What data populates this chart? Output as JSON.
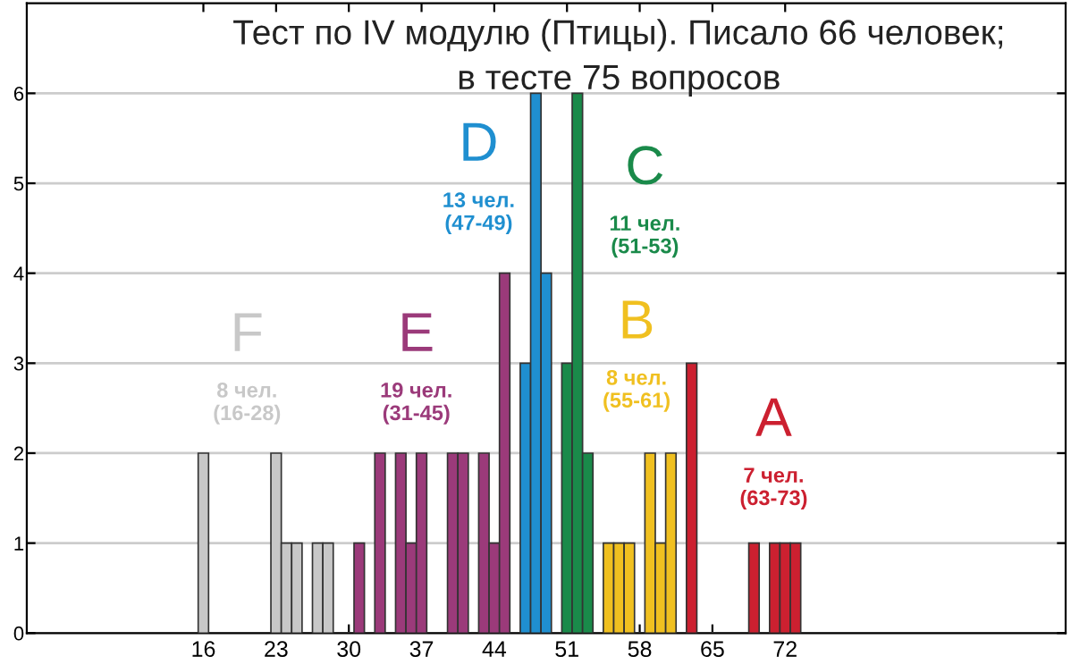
{
  "chart_data": {
    "type": "bar",
    "title": "Тест по IV модулю (Птицы). Писало 66 человек;\nв тесте 75 вопросов",
    "series": [
      {
        "name": "F",
        "color": "#c8c8c8",
        "x": [
          16,
          23,
          24,
          25,
          27,
          28
        ],
        "values": [
          2,
          2,
          1,
          1,
          1,
          1
        ]
      },
      {
        "name": "E",
        "color": "#9b3a7a",
        "x": [
          31,
          33,
          35,
          36,
          37,
          40,
          41,
          43,
          44,
          45
        ],
        "values": [
          1,
          2,
          2,
          1,
          2,
          2,
          2,
          2,
          1,
          4
        ]
      },
      {
        "name": "D",
        "color": "#1f8fd0",
        "x": [
          47,
          48,
          49
        ],
        "values": [
          3,
          6,
          4
        ]
      },
      {
        "name": "C",
        "color": "#1a8a4a",
        "x": [
          51,
          52,
          53
        ],
        "values": [
          3,
          6,
          2
        ]
      },
      {
        "name": "B",
        "color": "#f0c020",
        "x": [
          55,
          56,
          57,
          59,
          60,
          61
        ],
        "values": [
          1,
          1,
          1,
          2,
          1,
          2
        ]
      },
      {
        "name": "A",
        "color": "#cc2030",
        "x": [
          63,
          69,
          71,
          72,
          73
        ],
        "values": [
          3,
          1,
          1,
          1,
          1
        ]
      }
    ],
    "annotations": [
      "8 чел.\n(16-28)",
      "19 чел.\n(31-45)",
      "13 чел.\n(47-49)",
      "11 чел.\n(51-53)",
      "8 чел.\n(55-61)",
      "7 чел.\n(63-73)"
    ],
    "xlim": [
      -1,
      99
    ],
    "xticks": [
      16,
      23,
      30,
      37,
      44,
      51,
      58,
      65,
      72
    ],
    "ylim": [
      0,
      7
    ],
    "yticks": [
      0,
      1,
      2,
      3,
      4,
      5,
      6
    ],
    "grid": "y",
    "legend": false
  }
}
